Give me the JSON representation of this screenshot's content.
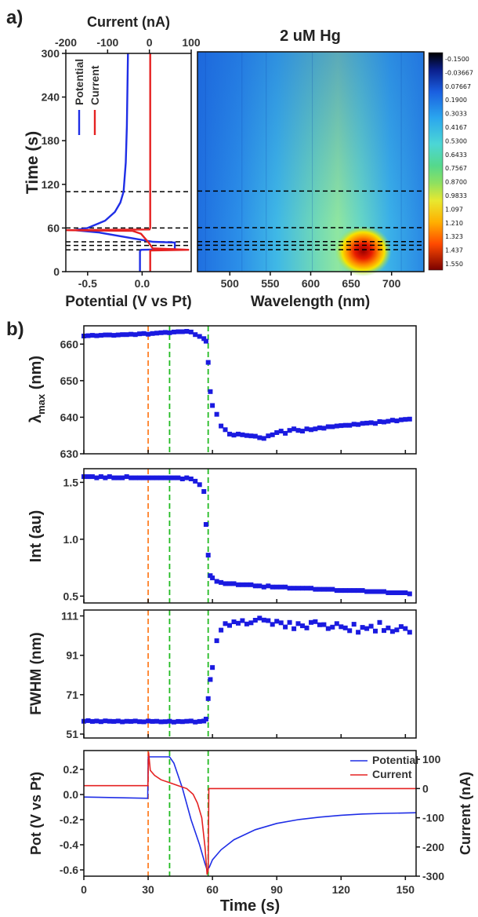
{
  "panel_labels": {
    "a": "a)",
    "b": "b)"
  },
  "colors": {
    "potential": "#1f2ee6",
    "current": "#e52222",
    "orange_line": "#ff7f27",
    "green_line": "#22bb22",
    "black_line": "#000000",
    "marker": "#1a1ae0"
  },
  "chart_data": [
    {
      "id": "a_left",
      "type": "line",
      "title": "",
      "xlabel": "Potential (V vs Pt)",
      "x2label": "Current (nA)",
      "ylabel": "Time (s)",
      "xlim": [
        -0.7,
        0.45
      ],
      "x2lim": [
        -200,
        100
      ],
      "ylim": [
        0,
        300
      ],
      "xticks": [
        "-0.5",
        "0.0"
      ],
      "x2ticks": [
        "-200",
        "-100",
        "0",
        "100"
      ],
      "yticks": [
        "0",
        "60",
        "120",
        "180",
        "240",
        "300"
      ],
      "legend": [
        "Potential",
        "Current"
      ],
      "hlines": [
        30,
        36,
        41,
        60,
        110
      ],
      "series": [
        {
          "name": "Potential",
          "axis": "x",
          "points": [
            [
              -0.02,
              0
            ],
            [
              -0.02,
              28
            ],
            [
              -0.01,
              30
            ],
            [
              0.3,
              31
            ],
            [
              0.3,
              40
            ],
            [
              0.1,
              41
            ],
            [
              -0.4,
              54
            ],
            [
              -0.62,
              57
            ],
            [
              -0.5,
              60
            ],
            [
              -0.34,
              70
            ],
            [
              -0.25,
              82
            ],
            [
              -0.2,
              95
            ],
            [
              -0.17,
              110
            ],
            [
              -0.15,
              150
            ],
            [
              -0.14,
              200
            ],
            [
              -0.13,
              300
            ]
          ]
        },
        {
          "name": "Current",
          "axis": "x2",
          "points": [
            [
              2,
              0
            ],
            [
              2,
              29
            ],
            [
              95,
              30
            ],
            [
              8,
              32
            ],
            [
              -2,
              40
            ],
            [
              -20,
              52
            ],
            [
              -40,
              56
            ],
            [
              -200,
              57
            ],
            [
              0,
              58
            ],
            [
              2,
              60
            ],
            [
              2,
              300
            ]
          ]
        }
      ]
    },
    {
      "id": "a_heatmap",
      "type": "heatmap",
      "title": "2 uM Hg",
      "xlabel": "Wavelength (nm)",
      "xlim": [
        460,
        740
      ],
      "ylim": [
        0,
        300
      ],
      "xticks": [
        "500",
        "550",
        "600",
        "650",
        "700"
      ],
      "hlines": [
        30,
        36,
        41,
        60,
        110
      ],
      "colorbar": [
        "-0.1500",
        "-0.03667",
        "0.07667",
        "0.1900",
        "0.3033",
        "0.4167",
        "0.5300",
        "0.6433",
        "0.7567",
        "0.8700",
        "0.9833",
        "1.097",
        "1.210",
        "1.323",
        "1.437",
        "1.550"
      ]
    },
    {
      "id": "b_lambda",
      "type": "scatter",
      "ylabel": "λmax (nm)",
      "xlim": [
        0,
        155
      ],
      "ylim": [
        630,
        665
      ],
      "yticks": [
        "630",
        "640",
        "650",
        "660"
      ],
      "x": [
        0,
        2,
        4,
        6,
        8,
        10,
        12,
        14,
        16,
        18,
        20,
        22,
        24,
        26,
        28,
        30,
        32,
        34,
        36,
        38,
        40,
        42,
        44,
        46,
        48,
        50,
        52,
        54,
        56,
        57,
        58,
        59,
        60,
        62,
        64,
        66,
        68,
        70,
        72,
        74,
        76,
        78,
        80,
        82,
        84,
        86,
        88,
        90,
        92,
        94,
        96,
        98,
        100,
        102,
        104,
        106,
        108,
        110,
        112,
        114,
        116,
        118,
        120,
        122,
        124,
        126,
        128,
        130,
        132,
        134,
        136,
        138,
        140,
        142,
        144,
        146,
        148,
        150,
        152
      ],
      "values": [
        662.2,
        662.3,
        662.4,
        662.3,
        662.4,
        662.5,
        662.5,
        662.4,
        662.5,
        662.6,
        662.6,
        662.7,
        662.6,
        662.8,
        662.9,
        662.7,
        662.9,
        663.0,
        663.1,
        663.2,
        663.1,
        663.3,
        663.4,
        663.4,
        663.5,
        663.3,
        662.6,
        662.1,
        661.5,
        660.8,
        655.0,
        647.0,
        643.2,
        640.8,
        637.6,
        636.6,
        635.4,
        635.1,
        635.4,
        635.2,
        635.0,
        634.9,
        634.8,
        634.4,
        634.2,
        634.9,
        635.2,
        635.8,
        636.2,
        635.6,
        636.4,
        636.8,
        636.4,
        636.2,
        636.8,
        636.6,
        636.8,
        637.1,
        637.0,
        637.4,
        637.4,
        637.6,
        637.7,
        637.8,
        637.8,
        638.1,
        638.0,
        638.3,
        638.4,
        638.5,
        638.3,
        638.8,
        638.7,
        638.9,
        639.2,
        639.0,
        639.3,
        639.4,
        639.5
      ]
    },
    {
      "id": "b_int",
      "type": "scatter",
      "ylabel": "Int (au)",
      "xlim": [
        0,
        155
      ],
      "ylim": [
        0.44,
        1.62
      ],
      "yticks": [
        "0.5",
        "1.0",
        "1.5"
      ],
      "x": [
        0,
        2,
        4,
        6,
        8,
        10,
        12,
        14,
        16,
        18,
        20,
        22,
        24,
        26,
        28,
        30,
        32,
        34,
        36,
        38,
        40,
        42,
        44,
        46,
        48,
        50,
        52,
        54,
        56,
        57,
        58,
        59,
        60,
        62,
        64,
        66,
        68,
        70,
        72,
        74,
        76,
        78,
        80,
        82,
        84,
        86,
        88,
        90,
        92,
        94,
        96,
        98,
        100,
        102,
        104,
        106,
        108,
        110,
        112,
        114,
        116,
        118,
        120,
        122,
        124,
        126,
        128,
        130,
        132,
        134,
        136,
        138,
        140,
        142,
        144,
        146,
        148,
        150,
        152
      ],
      "values": [
        1.55,
        1.55,
        1.55,
        1.54,
        1.55,
        1.54,
        1.55,
        1.54,
        1.54,
        1.54,
        1.55,
        1.54,
        1.54,
        1.54,
        1.54,
        1.54,
        1.54,
        1.54,
        1.54,
        1.54,
        1.54,
        1.54,
        1.54,
        1.53,
        1.54,
        1.53,
        1.51,
        1.48,
        1.42,
        1.13,
        0.86,
        0.68,
        0.66,
        0.63,
        0.62,
        0.61,
        0.61,
        0.61,
        0.6,
        0.6,
        0.6,
        0.6,
        0.59,
        0.59,
        0.58,
        0.59,
        0.58,
        0.58,
        0.58,
        0.58,
        0.57,
        0.57,
        0.57,
        0.57,
        0.57,
        0.57,
        0.56,
        0.56,
        0.56,
        0.56,
        0.56,
        0.55,
        0.55,
        0.55,
        0.55,
        0.55,
        0.55,
        0.55,
        0.54,
        0.54,
        0.54,
        0.54,
        0.54,
        0.53,
        0.53,
        0.53,
        0.53,
        0.53,
        0.52
      ]
    },
    {
      "id": "b_fwhm",
      "type": "scatter",
      "ylabel": "FWHM (nm)",
      "xlim": [
        0,
        155
      ],
      "ylim": [
        49,
        114
      ],
      "yticks": [
        "51",
        "71",
        "91",
        "111"
      ],
      "x": [
        0,
        2,
        4,
        6,
        8,
        10,
        12,
        14,
        16,
        18,
        20,
        22,
        24,
        26,
        28,
        30,
        32,
        34,
        36,
        38,
        40,
        42,
        44,
        46,
        48,
        50,
        52,
        54,
        56,
        57,
        58,
        59,
        60,
        62,
        64,
        66,
        68,
        70,
        72,
        74,
        76,
        78,
        80,
        82,
        84,
        86,
        88,
        90,
        92,
        94,
        96,
        98,
        100,
        102,
        104,
        106,
        108,
        110,
        112,
        114,
        116,
        118,
        120,
        122,
        124,
        126,
        128,
        130,
        132,
        134,
        136,
        138,
        140,
        142,
        144,
        146,
        148,
        150,
        152
      ],
      "values": [
        57.5,
        57.8,
        57.4,
        57.6,
        57.3,
        57.7,
        57.5,
        57.4,
        57.6,
        57.2,
        57.5,
        57.4,
        57.6,
        57.3,
        57.2,
        57.6,
        57.4,
        57.5,
        57.2,
        57.3,
        57.5,
        57.1,
        57.4,
        57.3,
        57.5,
        57.6,
        57.1,
        57.4,
        57.6,
        58.6,
        69.0,
        78.7,
        84.8,
        98.4,
        103.8,
        107.1,
        106.2,
        108.0,
        107.3,
        108.6,
        106.9,
        107.5,
        108.8,
        109.9,
        108.9,
        108.6,
        106.7,
        108.3,
        107.5,
        105.4,
        107.7,
        104.5,
        107.1,
        106.0,
        104.9,
        107.7,
        108.1,
        106.5,
        106.6,
        104.6,
        105.3,
        107.1,
        105.5,
        104.9,
        103.5,
        106.8,
        102.7,
        105.2,
        104.6,
        105.8,
        103.3,
        107.7,
        103.6,
        104.9,
        103.1,
        103.9,
        105.6,
        104.6,
        102.7
      ]
    },
    {
      "id": "b_pot",
      "type": "line",
      "ylabel": "Pot (V vs Pt)",
      "y2label": "Current (nA)",
      "xlabel": "Time (s)",
      "xlim": [
        0,
        155
      ],
      "ylim": [
        -0.65,
        0.35
      ],
      "y2lim": [
        -300,
        130
      ],
      "xticks": [
        "0",
        "30",
        "60",
        "90",
        "120",
        "150"
      ],
      "yticks": [
        "-0.6",
        "-0.4",
        "-0.2",
        "0.0",
        "0.2"
      ],
      "y2ticks": [
        "-300",
        "-200",
        "-100",
        "0",
        "100"
      ],
      "legend": [
        "Potential",
        "Current"
      ],
      "series": [
        {
          "name": "Potential",
          "axis": "y",
          "points": [
            [
              0,
              -0.02
            ],
            [
              29.8,
              -0.03
            ],
            [
              30,
              0.3
            ],
            [
              40,
              0.3
            ],
            [
              42,
              0.25
            ],
            [
              46,
              0.05
            ],
            [
              50,
              -0.2
            ],
            [
              54,
              -0.4
            ],
            [
              56.5,
              -0.55
            ],
            [
              57.5,
              -0.6
            ],
            [
              58.5,
              -0.58
            ],
            [
              60,
              -0.52
            ],
            [
              64,
              -0.44
            ],
            [
              70,
              -0.36
            ],
            [
              80,
              -0.28
            ],
            [
              90,
              -0.23
            ],
            [
              100,
              -0.2
            ],
            [
              110,
              -0.18
            ],
            [
              120,
              -0.165
            ],
            [
              130,
              -0.155
            ],
            [
              140,
              -0.15
            ],
            [
              155,
              -0.145
            ]
          ]
        },
        {
          "name": "Current",
          "axis": "y2",
          "points": [
            [
              0,
              10
            ],
            [
              29.9,
              10
            ],
            [
              30.2,
              125
            ],
            [
              31,
              62
            ],
            [
              33,
              45
            ],
            [
              36,
              30
            ],
            [
              40,
              20
            ],
            [
              44,
              10
            ],
            [
              48,
              0
            ],
            [
              51,
              -20
            ],
            [
              53,
              -50
            ],
            [
              55,
              -100
            ],
            [
              56.5,
              -200
            ],
            [
              57.5,
              -295
            ],
            [
              58,
              -280
            ],
            [
              58.3,
              0
            ],
            [
              155,
              0
            ]
          ]
        }
      ],
      "vlines": [
        {
          "x": 30,
          "color": "orange"
        },
        {
          "x": 40,
          "color": "green"
        },
        {
          "x": 58,
          "color": "green"
        }
      ]
    }
  ]
}
